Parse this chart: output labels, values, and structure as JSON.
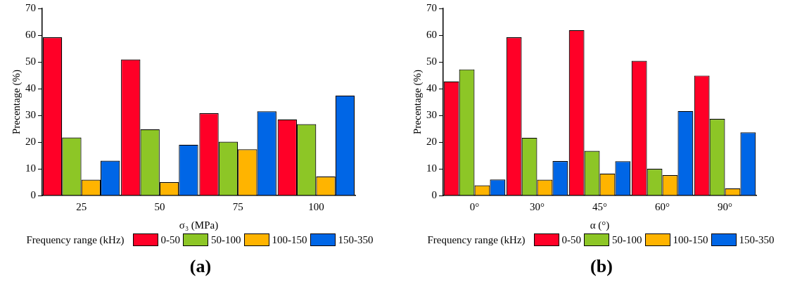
{
  "chart_data": [
    {
      "type": "bar",
      "title": "(a)",
      "xlabel": "σ₃ (MPa)",
      "ylabel": "Precentage (%)",
      "legend_title": "Frequency range (kHz)",
      "legend": "bottom",
      "grid": false,
      "categories": [
        "25",
        "50",
        "75",
        "100"
      ],
      "ylim": [
        0,
        70
      ],
      "yticks": [
        0,
        10,
        20,
        30,
        40,
        50,
        60,
        70
      ],
      "series": [
        {
          "name": "0-50",
          "color": "#ff0027",
          "values": [
            59.2,
            50.9,
            30.8,
            28.5
          ]
        },
        {
          "name": "50-100",
          "color": "#8dc626",
          "values": [
            21.7,
            24.8,
            20.1,
            26.7
          ]
        },
        {
          "name": "100-150",
          "color": "#ffb400",
          "values": [
            5.9,
            5.0,
            17.3,
            7.1
          ]
        },
        {
          "name": "150-350",
          "color": "#0066e6",
          "values": [
            13.0,
            19.0,
            31.5,
            37.4
          ]
        }
      ]
    },
    {
      "type": "bar",
      "title": "(b)",
      "xlabel": "α (°)",
      "ylabel": "Precentage (%)",
      "legend_title": "Frequency range (kHz)",
      "legend": "bottom",
      "grid": false,
      "categories": [
        "0°",
        "30°",
        "45°",
        "60°",
        "90°"
      ],
      "ylim": [
        0,
        70
      ],
      "yticks": [
        0,
        10,
        20,
        30,
        40,
        50,
        60,
        70
      ],
      "series": [
        {
          "name": "0-50",
          "color": "#ff0027",
          "values": [
            42.7,
            59.2,
            61.9,
            50.4,
            44.9
          ]
        },
        {
          "name": "50-100",
          "color": "#8dc626",
          "values": [
            47.2,
            21.6,
            16.7,
            10.0,
            28.7
          ]
        },
        {
          "name": "100-150",
          "color": "#ffb400",
          "values": [
            3.8,
            5.9,
            8.2,
            7.6,
            2.7
          ]
        },
        {
          "name": "150-350",
          "color": "#0066e6",
          "values": [
            6.0,
            12.9,
            12.8,
            31.6,
            23.6
          ]
        }
      ]
    }
  ]
}
